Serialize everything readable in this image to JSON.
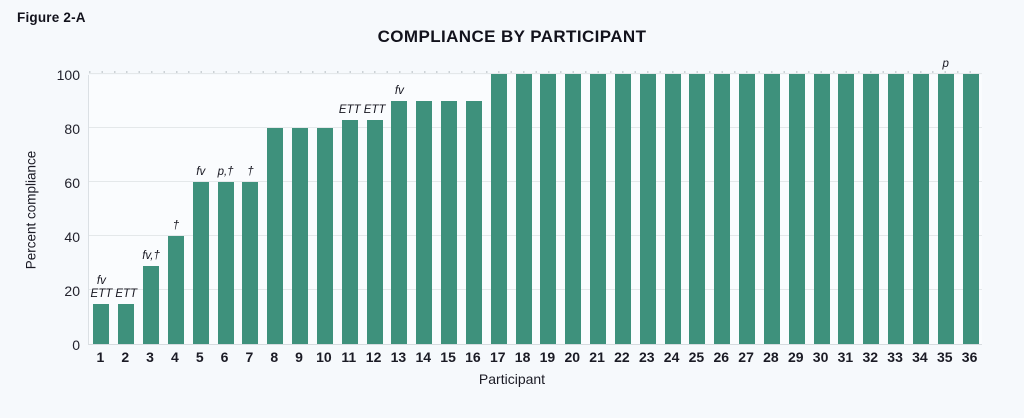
{
  "figure_label": "Figure 2-A",
  "chart_data": {
    "type": "bar",
    "title": "COMPLIANCE BY PARTICIPANT",
    "xlabel": "Participant",
    "ylabel": "Percent compliance",
    "ylim": [
      0,
      100
    ],
    "yticks": [
      0,
      20,
      40,
      60,
      80,
      100
    ],
    "grid": true,
    "legend": "none",
    "bar_color": "#3e917c",
    "background_color": "#f6f9fc",
    "categories": [
      "1",
      "2",
      "3",
      "4",
      "5",
      "6",
      "7",
      "8",
      "9",
      "10",
      "11",
      "12",
      "13",
      "14",
      "15",
      "16",
      "17",
      "18",
      "19",
      "20",
      "21",
      "22",
      "23",
      "24",
      "25",
      "26",
      "27",
      "28",
      "29",
      "30",
      "31",
      "32",
      "33",
      "34",
      "35",
      "36"
    ],
    "values": [
      15,
      15,
      29,
      40,
      60,
      60,
      60,
      80,
      80,
      80,
      83,
      83,
      90,
      90,
      90,
      90,
      100,
      100,
      100,
      100,
      100,
      100,
      100,
      100,
      100,
      100,
      100,
      100,
      100,
      100,
      100,
      100,
      100,
      100,
      100,
      100
    ],
    "annotations": [
      {
        "participant": 1,
        "lines": [
          "fv",
          "ETT"
        ]
      },
      {
        "participant": 2,
        "lines": [
          "ETT"
        ]
      },
      {
        "participant": 3,
        "lines": [
          "fv,†"
        ]
      },
      {
        "participant": 4,
        "lines": [
          "†"
        ]
      },
      {
        "participant": 5,
        "lines": [
          "fv"
        ]
      },
      {
        "participant": 6,
        "lines": [
          "p,†"
        ]
      },
      {
        "participant": 7,
        "lines": [
          "†"
        ]
      },
      {
        "participant": 11,
        "lines": [
          "ETT"
        ]
      },
      {
        "participant": 12,
        "lines": [
          "ETT"
        ]
      },
      {
        "participant": 13,
        "lines": [
          "fv"
        ]
      },
      {
        "participant": 35,
        "lines": [
          "p"
        ]
      }
    ]
  }
}
